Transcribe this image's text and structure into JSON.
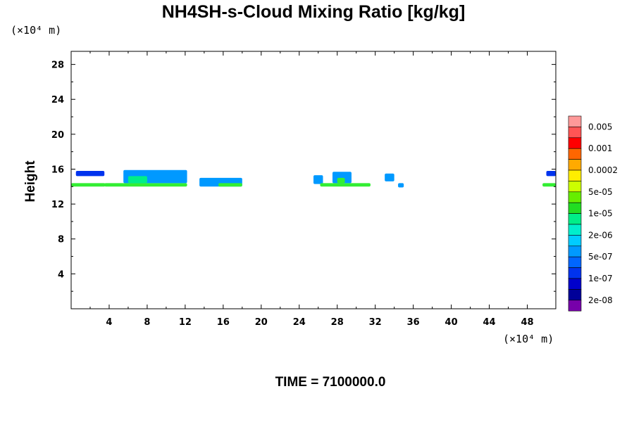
{
  "chart_data": {
    "type": "heatmap",
    "title": "NH4SH-s-Cloud Mixing Ratio [kg/kg]",
    "ylabel": "Height",
    "x_unit": "(×10⁴ m)",
    "y_unit": "(×10⁴ m)",
    "xlim": [
      0,
      51
    ],
    "ylim": [
      0,
      29.5
    ],
    "x_ticks": [
      4,
      8,
      12,
      16,
      20,
      24,
      28,
      32,
      36,
      40,
      44,
      48
    ],
    "y_ticks": [
      4,
      8,
      12,
      16,
      20,
      24,
      28
    ],
    "colorbar": {
      "labels": [
        "0.005",
        "0.001",
        "0.0002",
        "5e-05",
        "1e-05",
        "2e-06",
        "5e-07",
        "1e-07",
        "2e-08"
      ],
      "colors_top_to_bottom": [
        "#ff9999",
        "#ff5555",
        "#ff0000",
        "#ff6600",
        "#ffaa00",
        "#ffee00",
        "#ccff00",
        "#66ee00",
        "#22dd22",
        "#00ee88",
        "#00eecc",
        "#00ccff",
        "#0099ff",
        "#0066ff",
        "#0033ee",
        "#0000cc",
        "#000099",
        "#7700aa"
      ]
    },
    "cloud_regions": [
      {
        "x": [
          0.0,
          3.6
        ],
        "y": [
          14.0,
          14.4
        ],
        "color": "#33ee33"
      },
      {
        "x": [
          0.5,
          3.5
        ],
        "y": [
          15.2,
          15.8
        ],
        "color": "#0033ee"
      },
      {
        "x": [
          3.5,
          12.2
        ],
        "y": [
          14.0,
          14.4
        ],
        "color": "#33ee33"
      },
      {
        "x": [
          5.5,
          12.2
        ],
        "y": [
          14.4,
          15.9
        ],
        "color": "#0099ff"
      },
      {
        "x": [
          6.0,
          8.0
        ],
        "y": [
          14.4,
          15.2
        ],
        "color": "#00ee88"
      },
      {
        "x": [
          13.5,
          18.0
        ],
        "y": [
          14.0,
          15.0
        ],
        "color": "#0099ff"
      },
      {
        "x": [
          15.5,
          18.0
        ],
        "y": [
          14.0,
          14.4
        ],
        "color": "#33ee33"
      },
      {
        "x": [
          25.5,
          26.5
        ],
        "y": [
          14.3,
          15.3
        ],
        "color": "#0099ff"
      },
      {
        "x": [
          26.2,
          31.5
        ],
        "y": [
          14.0,
          14.4
        ],
        "color": "#33ee33"
      },
      {
        "x": [
          27.5,
          29.5
        ],
        "y": [
          14.4,
          15.7
        ],
        "color": "#0099ff"
      },
      {
        "x": [
          28.0,
          28.8
        ],
        "y": [
          14.4,
          15.0
        ],
        "color": "#33ee33"
      },
      {
        "x": [
          33.0,
          34.0
        ],
        "y": [
          14.6,
          15.5
        ],
        "color": "#0099ff"
      },
      {
        "x": [
          34.4,
          35.0
        ],
        "y": [
          13.9,
          14.4
        ],
        "color": "#0099ff"
      },
      {
        "x": [
          49.6,
          51.0
        ],
        "y": [
          14.0,
          14.4
        ],
        "color": "#33ee33"
      },
      {
        "x": [
          50.0,
          51.0
        ],
        "y": [
          15.2,
          15.8
        ],
        "color": "#0033ee"
      }
    ]
  },
  "footer": {
    "time_label": "TIME = 7100000.0"
  }
}
